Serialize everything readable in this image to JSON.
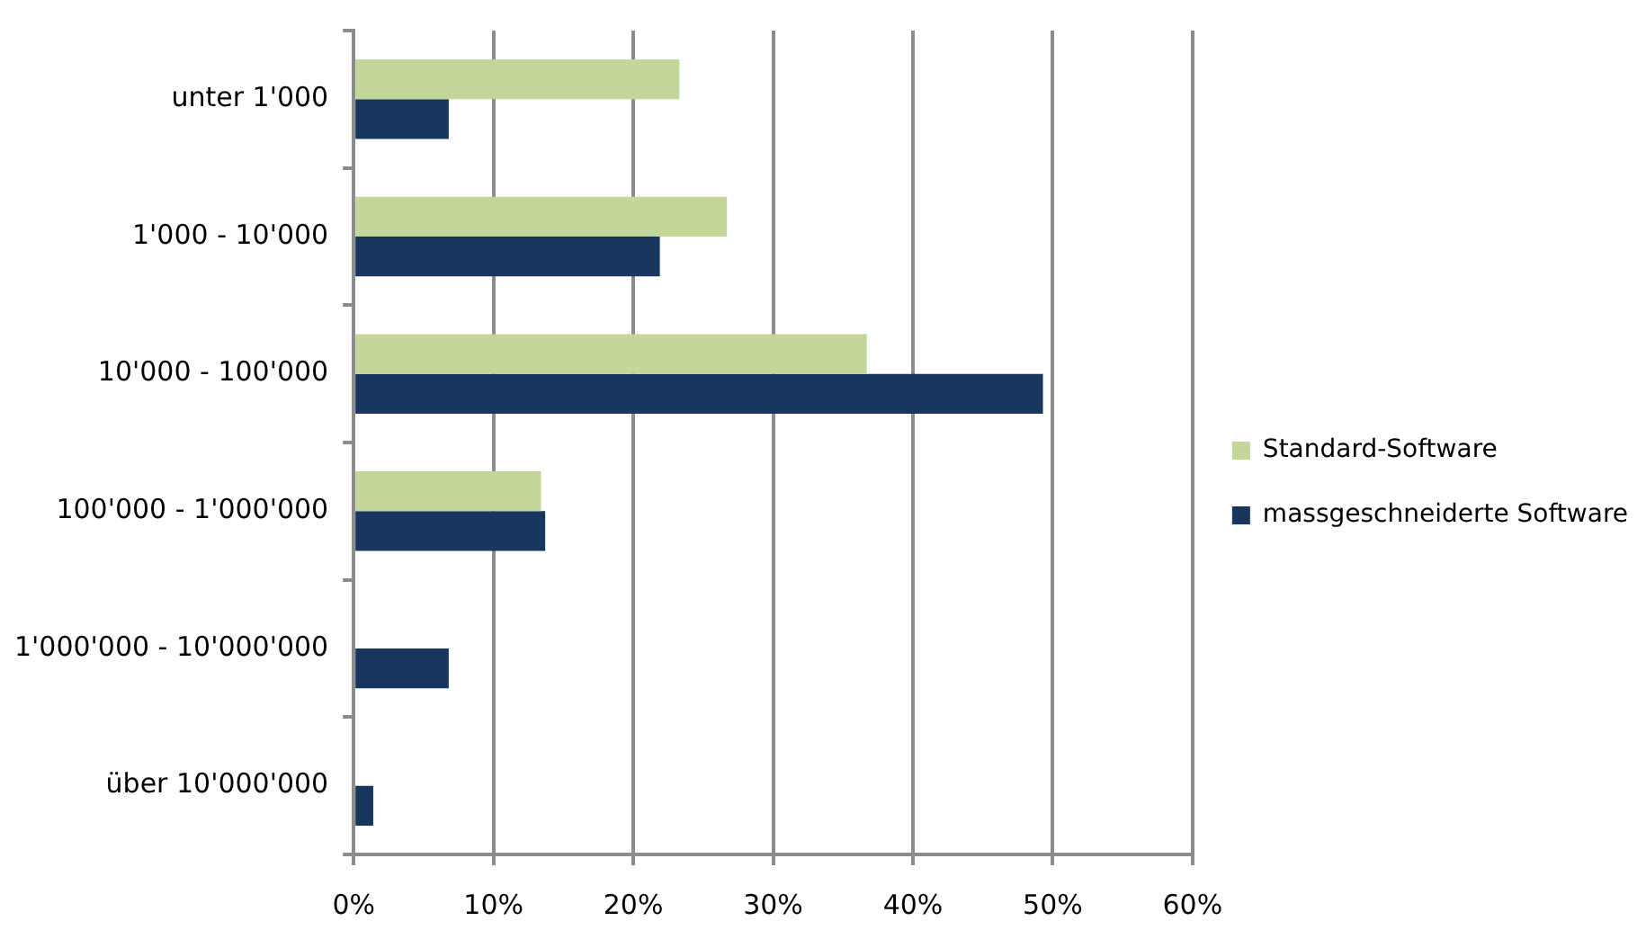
{
  "chart_data": {
    "type": "bar",
    "orientation": "horizontal",
    "categories": [
      "unter 1'000",
      "1'000 - 10'000",
      "10'000 - 100'000",
      "100'000 - 1'000'000",
      "1'000'000 - 10'000'000",
      "über 10'000'000"
    ],
    "series": [
      {
        "name": "Standard-Software",
        "color": "#c4d79b",
        "values": [
          23.3,
          26.7,
          36.7,
          13.4,
          0,
          0
        ]
      },
      {
        "name": "massgeschneiderte Software",
        "color": "#17375e",
        "values": [
          6.8,
          21.9,
          49.3,
          13.7,
          6.8,
          1.4
        ]
      }
    ],
    "xlim": [
      0,
      60
    ],
    "xticks": [
      {
        "value": 0,
        "label": "0%"
      },
      {
        "value": 10,
        "label": "10%"
      },
      {
        "value": 20,
        "label": "20%"
      },
      {
        "value": 30,
        "label": "30%"
      },
      {
        "value": 40,
        "label": "40%"
      },
      {
        "value": 50,
        "label": "50%"
      },
      {
        "value": 60,
        "label": "60%"
      }
    ],
    "grid": "x",
    "legend": "right"
  }
}
